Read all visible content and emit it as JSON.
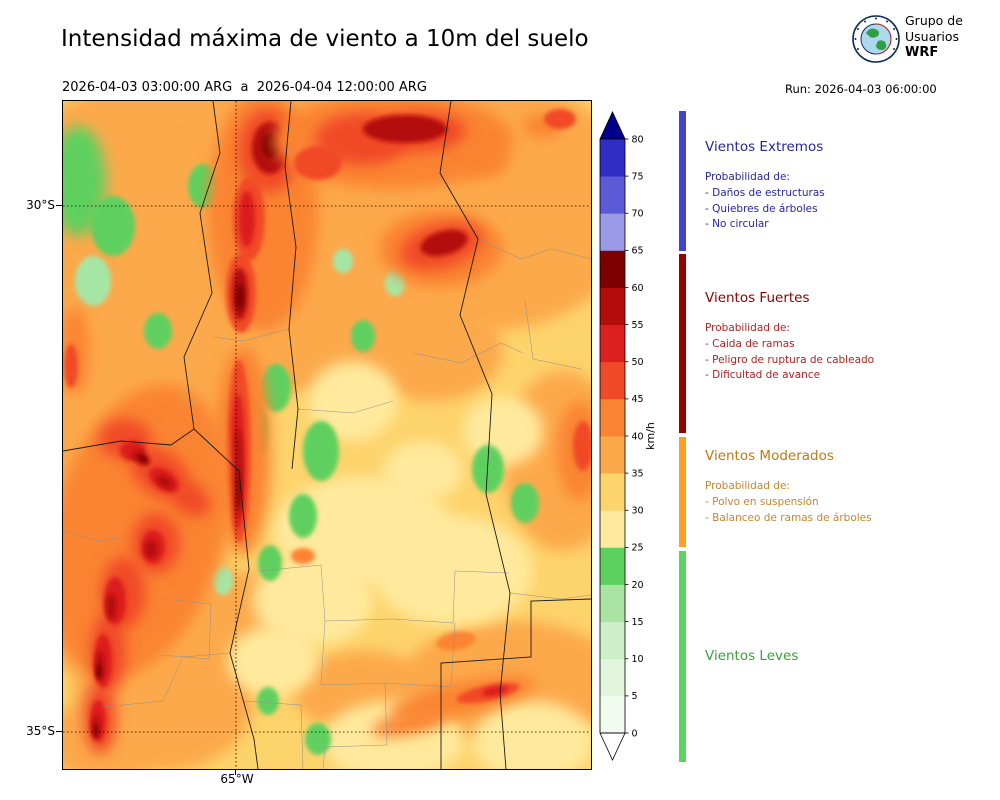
{
  "header": {
    "title": "Intensidad máxima de viento a 10m del suelo",
    "period": "2026-04-03 03:00:00 ARG  a  2026-04-04 12:00:00 ARG",
    "run": "Run: 2026-04-03 06:00:00",
    "logo": {
      "line1": "Grupo de",
      "line2": "Usuarios",
      "line3": "WRF"
    }
  },
  "map": {
    "lat_labels": [
      {
        "label": "30°S"
      },
      {
        "label": "35°S"
      }
    ],
    "lon_labels": [
      {
        "label": "65°W"
      }
    ],
    "gridlines": {
      "h": [
        105,
        631
      ],
      "v": [
        173
      ]
    }
  },
  "colorbar": {
    "unit": "km/h",
    "ticks": [
      0,
      5,
      10,
      15,
      20,
      25,
      30,
      35,
      40,
      45,
      50,
      55,
      60,
      65,
      70,
      75,
      80
    ],
    "colors": [
      "#f2fbf0",
      "#e0f5dc",
      "#ccefc8",
      "#a9e4a3",
      "#5ed05e",
      "#ffe99c",
      "#fdd36b",
      "#fca94c",
      "#fa8433",
      "#f14a28",
      "#dc1f1f",
      "#b40b0b",
      "#7f0000",
      "#9a9ae8",
      "#5b5bd6",
      "#2e2ec4"
    ],
    "over_color": "#00008b",
    "under_color": "#ffffff"
  },
  "legend": {
    "categories": [
      {
        "name": "Vientos Extremos",
        "color": "#26269e",
        "body_color": "#26269e",
        "bar_color": "#4343cf",
        "intro": "Probabilidad de:",
        "items": [
          "- Daños de estructuras",
          "- Quiebres de árboles",
          "- No circular"
        ]
      },
      {
        "name": "Vientos Fuertes",
        "color": "#8b0000",
        "body_color": "#b22222",
        "bar_color": "#990000",
        "intro": "Probabilidad de:",
        "items": [
          "- Caida de ramas",
          "- Peligro de ruptura de cableado",
          "- Dificultad de avance"
        ]
      },
      {
        "name": "Vientos Moderados",
        "color": "#bf7a10",
        "body_color": "#c6862e",
        "bar_color": "#ff9f1f",
        "intro": "Probabilidad de:",
        "items": [
          "- Polvo en suspensión",
          "- Balanceo de ramas de árboles"
        ]
      },
      {
        "name": "Vientos Leves",
        "color": "#3aa03a",
        "body_color": "#3aa03a",
        "bar_color": "#5bd35f",
        "intro": "",
        "items": []
      }
    ]
  },
  "chart_data": {
    "type": "heatmap",
    "title": "Intensidad máxima de viento a 10m del suelo",
    "valid_from": "2026-04-03 03:00:00 ARG",
    "valid_to": "2026-04-04 12:00:00 ARG",
    "model_run": "2026-04-03 06:00:00",
    "unit": "km/h",
    "colorbar_levels": [
      0,
      5,
      10,
      15,
      20,
      25,
      30,
      35,
      40,
      45,
      50,
      55,
      60,
      65,
      70,
      75,
      80
    ],
    "colorbar_colors_bottom_to_top": [
      "#f2fbf0",
      "#e0f5dc",
      "#ccefc8",
      "#a9e4a3",
      "#5ed05e",
      "#ffe99c",
      "#fdd36b",
      "#fca94c",
      "#fa8433",
      "#f14a28",
      "#dc1f1f",
      "#b40b0b",
      "#7f0000",
      "#9a9ae8",
      "#5b5bd6",
      "#2e2ec4"
    ],
    "colorbar_over_color": "#00008b",
    "colorbar_under_color": "#ffffff",
    "x_tick_labels": [
      "65°W"
    ],
    "y_tick_labels": [
      "30°S",
      "35°S"
    ],
    "grid": "dotted",
    "legend_position": "right",
    "wind_categories": [
      {
        "name": "Vientos Leves",
        "range_kmh": [
          0,
          25
        ]
      },
      {
        "name": "Vientos Moderados",
        "range_kmh": [
          25,
          40
        ]
      },
      {
        "name": "Vientos Fuertes",
        "range_kmh": [
          40,
          65
        ]
      },
      {
        "name": "Vientos Extremos",
        "range_kmh": [
          65,
          80
        ]
      }
    ]
  },
  "map_features": {
    "base": "#fdd36b",
    "dept_color": "#909090",
    "province_color": "#1a1a1a",
    "blobs": [
      [
        260,
        60,
        300,
        110,
        "#fca94c",
        "l",
        0
      ],
      [
        120,
        180,
        160,
        140,
        "#fca94c",
        "l",
        0
      ],
      [
        420,
        120,
        150,
        110,
        "#fca94c",
        "l",
        0
      ],
      [
        60,
        380,
        110,
        220,
        "#fca94c",
        "l",
        0
      ],
      [
        250,
        200,
        120,
        90,
        "#fca94c",
        "l",
        0
      ],
      [
        370,
        250,
        70,
        50,
        "#fca94c",
        "l",
        0
      ],
      [
        500,
        360,
        60,
        90,
        "#fca94c",
        "l",
        0
      ],
      [
        450,
        580,
        110,
        60,
        "#fca94c",
        "l",
        0
      ],
      [
        300,
        590,
        70,
        40,
        "#fca94c",
        "l",
        0
      ],
      [
        100,
        600,
        90,
        70,
        "#fca94c",
        "l",
        0
      ],
      [
        170,
        520,
        60,
        50,
        "#fca94c",
        "l",
        0
      ],
      [
        40,
        640,
        60,
        40,
        "#fca94c",
        "l",
        0
      ],
      [
        300,
        430,
        90,
        55,
        "#ffe99c",
        "l",
        0
      ],
      [
        390,
        470,
        80,
        55,
        "#ffe99c",
        "l",
        0
      ],
      [
        250,
        500,
        60,
        45,
        "#ffe99c",
        "l",
        0
      ],
      [
        330,
        640,
        70,
        40,
        "#ffe99c",
        "l",
        0
      ],
      [
        470,
        640,
        60,
        40,
        "#ffe99c",
        "l",
        0
      ],
      [
        440,
        330,
        40,
        35,
        "#ffe99c",
        "l",
        0
      ],
      [
        290,
        300,
        45,
        40,
        "#ffe99c",
        "l",
        0
      ],
      [
        360,
        370,
        40,
        30,
        "#ffe99c",
        "l",
        0
      ],
      [
        210,
        560,
        45,
        35,
        "#ffe99c",
        "l",
        0
      ],
      [
        15,
        80,
        28,
        55,
        "#5ed05e",
        "l",
        0
      ],
      [
        50,
        125,
        22,
        30,
        "#5ed05e",
        "s",
        0
      ],
      [
        30,
        180,
        18,
        25,
        "#a5e6a5",
        "s",
        0
      ],
      [
        140,
        85,
        15,
        22,
        "#5ed05e",
        "s",
        0
      ],
      [
        95,
        230,
        14,
        18,
        "#5ed05e",
        "s",
        0
      ],
      [
        105,
        370,
        30,
        50,
        "#5ed05e",
        "l",
        0
      ],
      [
        70,
        425,
        22,
        30,
        "#5ed05e",
        "s",
        0
      ],
      [
        130,
        430,
        15,
        20,
        "#a5e6a5",
        "s",
        0
      ],
      [
        185,
        330,
        20,
        35,
        "#5ed05e",
        "s",
        0
      ],
      [
        213,
        287,
        15,
        24,
        "#5ed05e",
        "s",
        0
      ],
      [
        258,
        350,
        18,
        30,
        "#5ed05e",
        "s",
        0
      ],
      [
        240,
        415,
        14,
        22,
        "#5ed05e",
        "s",
        0
      ],
      [
        207,
        462,
        12,
        18,
        "#5ed05e",
        "s",
        0
      ],
      [
        160,
        480,
        10,
        14,
        "#a5e6a5",
        "s",
        0
      ],
      [
        300,
        235,
        12,
        16,
        "#5ed05e",
        "s",
        0
      ],
      [
        332,
        182,
        10,
        13,
        "#a5e6a5",
        "s",
        0
      ],
      [
        425,
        368,
        16,
        24,
        "#5ed05e",
        "s",
        0
      ],
      [
        462,
        402,
        14,
        20,
        "#5ed05e",
        "s",
        0
      ],
      [
        205,
        600,
        11,
        14,
        "#5ed05e",
        "s",
        0
      ],
      [
        255,
        638,
        13,
        16,
        "#5ed05e",
        "s",
        0
      ],
      [
        120,
        310,
        12,
        16,
        "#a5e6a5",
        "s",
        0
      ],
      [
        280,
        160,
        10,
        12,
        "#a5e6a5",
        "s",
        0
      ],
      [
        200,
        110,
        55,
        120,
        "#fa8433",
        "l",
        0
      ],
      [
        205,
        50,
        30,
        42,
        "#f14a28",
        "l",
        0
      ],
      [
        207,
        47,
        18,
        26,
        "#b40b0b",
        "s",
        0
      ],
      [
        208,
        44,
        9,
        13,
        "#7f0000",
        "s",
        0
      ],
      [
        186,
        118,
        16,
        42,
        "#f14a28",
        "s",
        0
      ],
      [
        184,
        118,
        8,
        28,
        "#dc1f1f",
        "s",
        0
      ],
      [
        178,
        192,
        15,
        40,
        "#f14a28",
        "s",
        0
      ],
      [
        177,
        193,
        8,
        26,
        "#b40b0b",
        "s",
        0
      ],
      [
        177,
        196,
        4,
        13,
        "#7f0000",
        "s",
        0
      ],
      [
        330,
        40,
        120,
        48,
        "#fa8433",
        "l",
        0
      ],
      [
        300,
        38,
        48,
        26,
        "#f14a28",
        "l",
        0
      ],
      [
        358,
        30,
        45,
        20,
        "#f14a28",
        "l",
        0
      ],
      [
        342,
        28,
        42,
        14,
        "#b40b0b",
        "s",
        0
      ],
      [
        255,
        62,
        24,
        17,
        "#f14a28",
        "s",
        0
      ],
      [
        420,
        60,
        25,
        15,
        "#fa8433",
        "l",
        0
      ],
      [
        480,
        25,
        20,
        12,
        "#fa8433",
        "l",
        0
      ],
      [
        497,
        18,
        16,
        10,
        "#f14a28",
        "s",
        0
      ],
      [
        378,
        148,
        62,
        38,
        "#fa8433",
        "l",
        0
      ],
      [
        378,
        145,
        42,
        22,
        "#f14a28",
        "l",
        -15
      ],
      [
        381,
        142,
        24,
        12,
        "#b40b0b",
        "s",
        -15
      ],
      [
        180,
        350,
        28,
        105,
        "#fa8433",
        "l",
        0
      ],
      [
        176,
        350,
        12,
        92,
        "#f14a28",
        "s",
        0
      ],
      [
        175,
        360,
        7,
        68,
        "#dc1f1f",
        "s",
        0
      ],
      [
        175,
        372,
        4.5,
        45,
        "#b40b0b",
        "s",
        0
      ],
      [
        175,
        388,
        2.5,
        20,
        "#7f0000",
        "s",
        0
      ],
      [
        59,
        400,
        4,
        6,
        "#8080e0",
        "s",
        0
      ],
      [
        75,
        430,
        85,
        150,
        "#fa8433",
        "l",
        15
      ],
      [
        62,
        338,
        26,
        20,
        "#f14a28",
        "l",
        0
      ],
      [
        97,
        372,
        32,
        22,
        "#f14a28",
        "l",
        35
      ],
      [
        127,
        398,
        22,
        15,
        "#f14a28",
        "l",
        35
      ],
      [
        93,
        442,
        24,
        30,
        "#f14a28",
        "l",
        0
      ],
      [
        60,
        492,
        22,
        36,
        "#f14a28",
        "l",
        0
      ],
      [
        45,
        552,
        18,
        40,
        "#f14a28",
        "l",
        0
      ],
      [
        37,
        617,
        16,
        36,
        "#f14a28",
        "l",
        0
      ],
      [
        70,
        350,
        13,
        10,
        "#dc1f1f",
        "s",
        0
      ],
      [
        101,
        379,
        17,
        10,
        "#dc1f1f",
        "s",
        35
      ],
      [
        90,
        446,
        12,
        17,
        "#dc1f1f",
        "s",
        0
      ],
      [
        52,
        500,
        11,
        24,
        "#dc1f1f",
        "s",
        0
      ],
      [
        40,
        560,
        9,
        27,
        "#dc1f1f",
        "s",
        0
      ],
      [
        35,
        620,
        8,
        21,
        "#dc1f1f",
        "s",
        0
      ],
      [
        78,
        357,
        10,
        6,
        "#b40b0b",
        "s",
        35
      ],
      [
        102,
        381,
        9,
        5,
        "#b40b0b",
        "s",
        35
      ],
      [
        88,
        448,
        6,
        9,
        "#b40b0b",
        "s",
        0
      ],
      [
        48,
        506,
        5,
        13,
        "#b40b0b",
        "s",
        0
      ],
      [
        37,
        565,
        4.5,
        15,
        "#b40b0b",
        "s",
        0
      ],
      [
        33,
        626,
        4,
        11,
        "#b40b0b",
        "s",
        0
      ],
      [
        80,
        358,
        5,
        3,
        "#7f0000",
        "s",
        35
      ],
      [
        36,
        570,
        2.5,
        8,
        "#7f0000",
        "s",
        0
      ],
      [
        33,
        630,
        2,
        6,
        "#7f0000",
        "s",
        0
      ],
      [
        12,
        250,
        14,
        45,
        "#fa8433",
        "l",
        0
      ],
      [
        8,
        265,
        7,
        22,
        "#f14a28",
        "s",
        0
      ],
      [
        400,
        597,
        75,
        16,
        "#fa8433",
        "l",
        -12
      ],
      [
        348,
        622,
        40,
        11,
        "#fa8433",
        "l",
        -12
      ],
      [
        425,
        592,
        32,
        8,
        "#f14a28",
        "s",
        -12
      ],
      [
        432,
        590,
        13,
        4.5,
        "#dc1f1f",
        "s",
        -12
      ],
      [
        393,
        540,
        20,
        9,
        "#fa8433",
        "s",
        -10
      ],
      [
        240,
        455,
        12,
        8,
        "#fa8433",
        "s",
        0
      ],
      [
        516,
        350,
        22,
        50,
        "#fa8433",
        "l",
        0
      ],
      [
        520,
        345,
        10,
        25,
        "#f14a28",
        "s",
        0
      ]
    ],
    "province_lines": [
      "150,0 157,52 137,112 149,192 121,256 131,328 108,344 58,340 0,350",
      "131,328 176,370 186,468 167,552 191,638 195,668",
      "388,0 377,72 415,138 397,214 429,293 423,393 447,492 437,592 443,668",
      "228,0 222,66 233,146 226,228 235,308 229,368",
      "378,668 378,562 468,556 468,500 528,498"
    ],
    "dept_lines": [
      "196,470 258,464 262,520 330,518",
      "262,520 258,584 322,582 324,644 262,646 260,668",
      "330,518 390,522 392,470 446,472",
      "322,582 388,586 392,522",
      "100,498 148,503 146,558 98,554",
      "350,252 398,262 438,242 460,252",
      "462,200 470,258 518,268",
      "180,600 238,604 240,668",
      "447,492 498,498 528,494",
      "415,138 458,158 488,148 528,158",
      "167,552 120,556 100,600 40,606",
      "226,228 180,240 150,236",
      "235,308 290,312 330,300",
      "0,430 36,440 60,436"
    ]
  }
}
